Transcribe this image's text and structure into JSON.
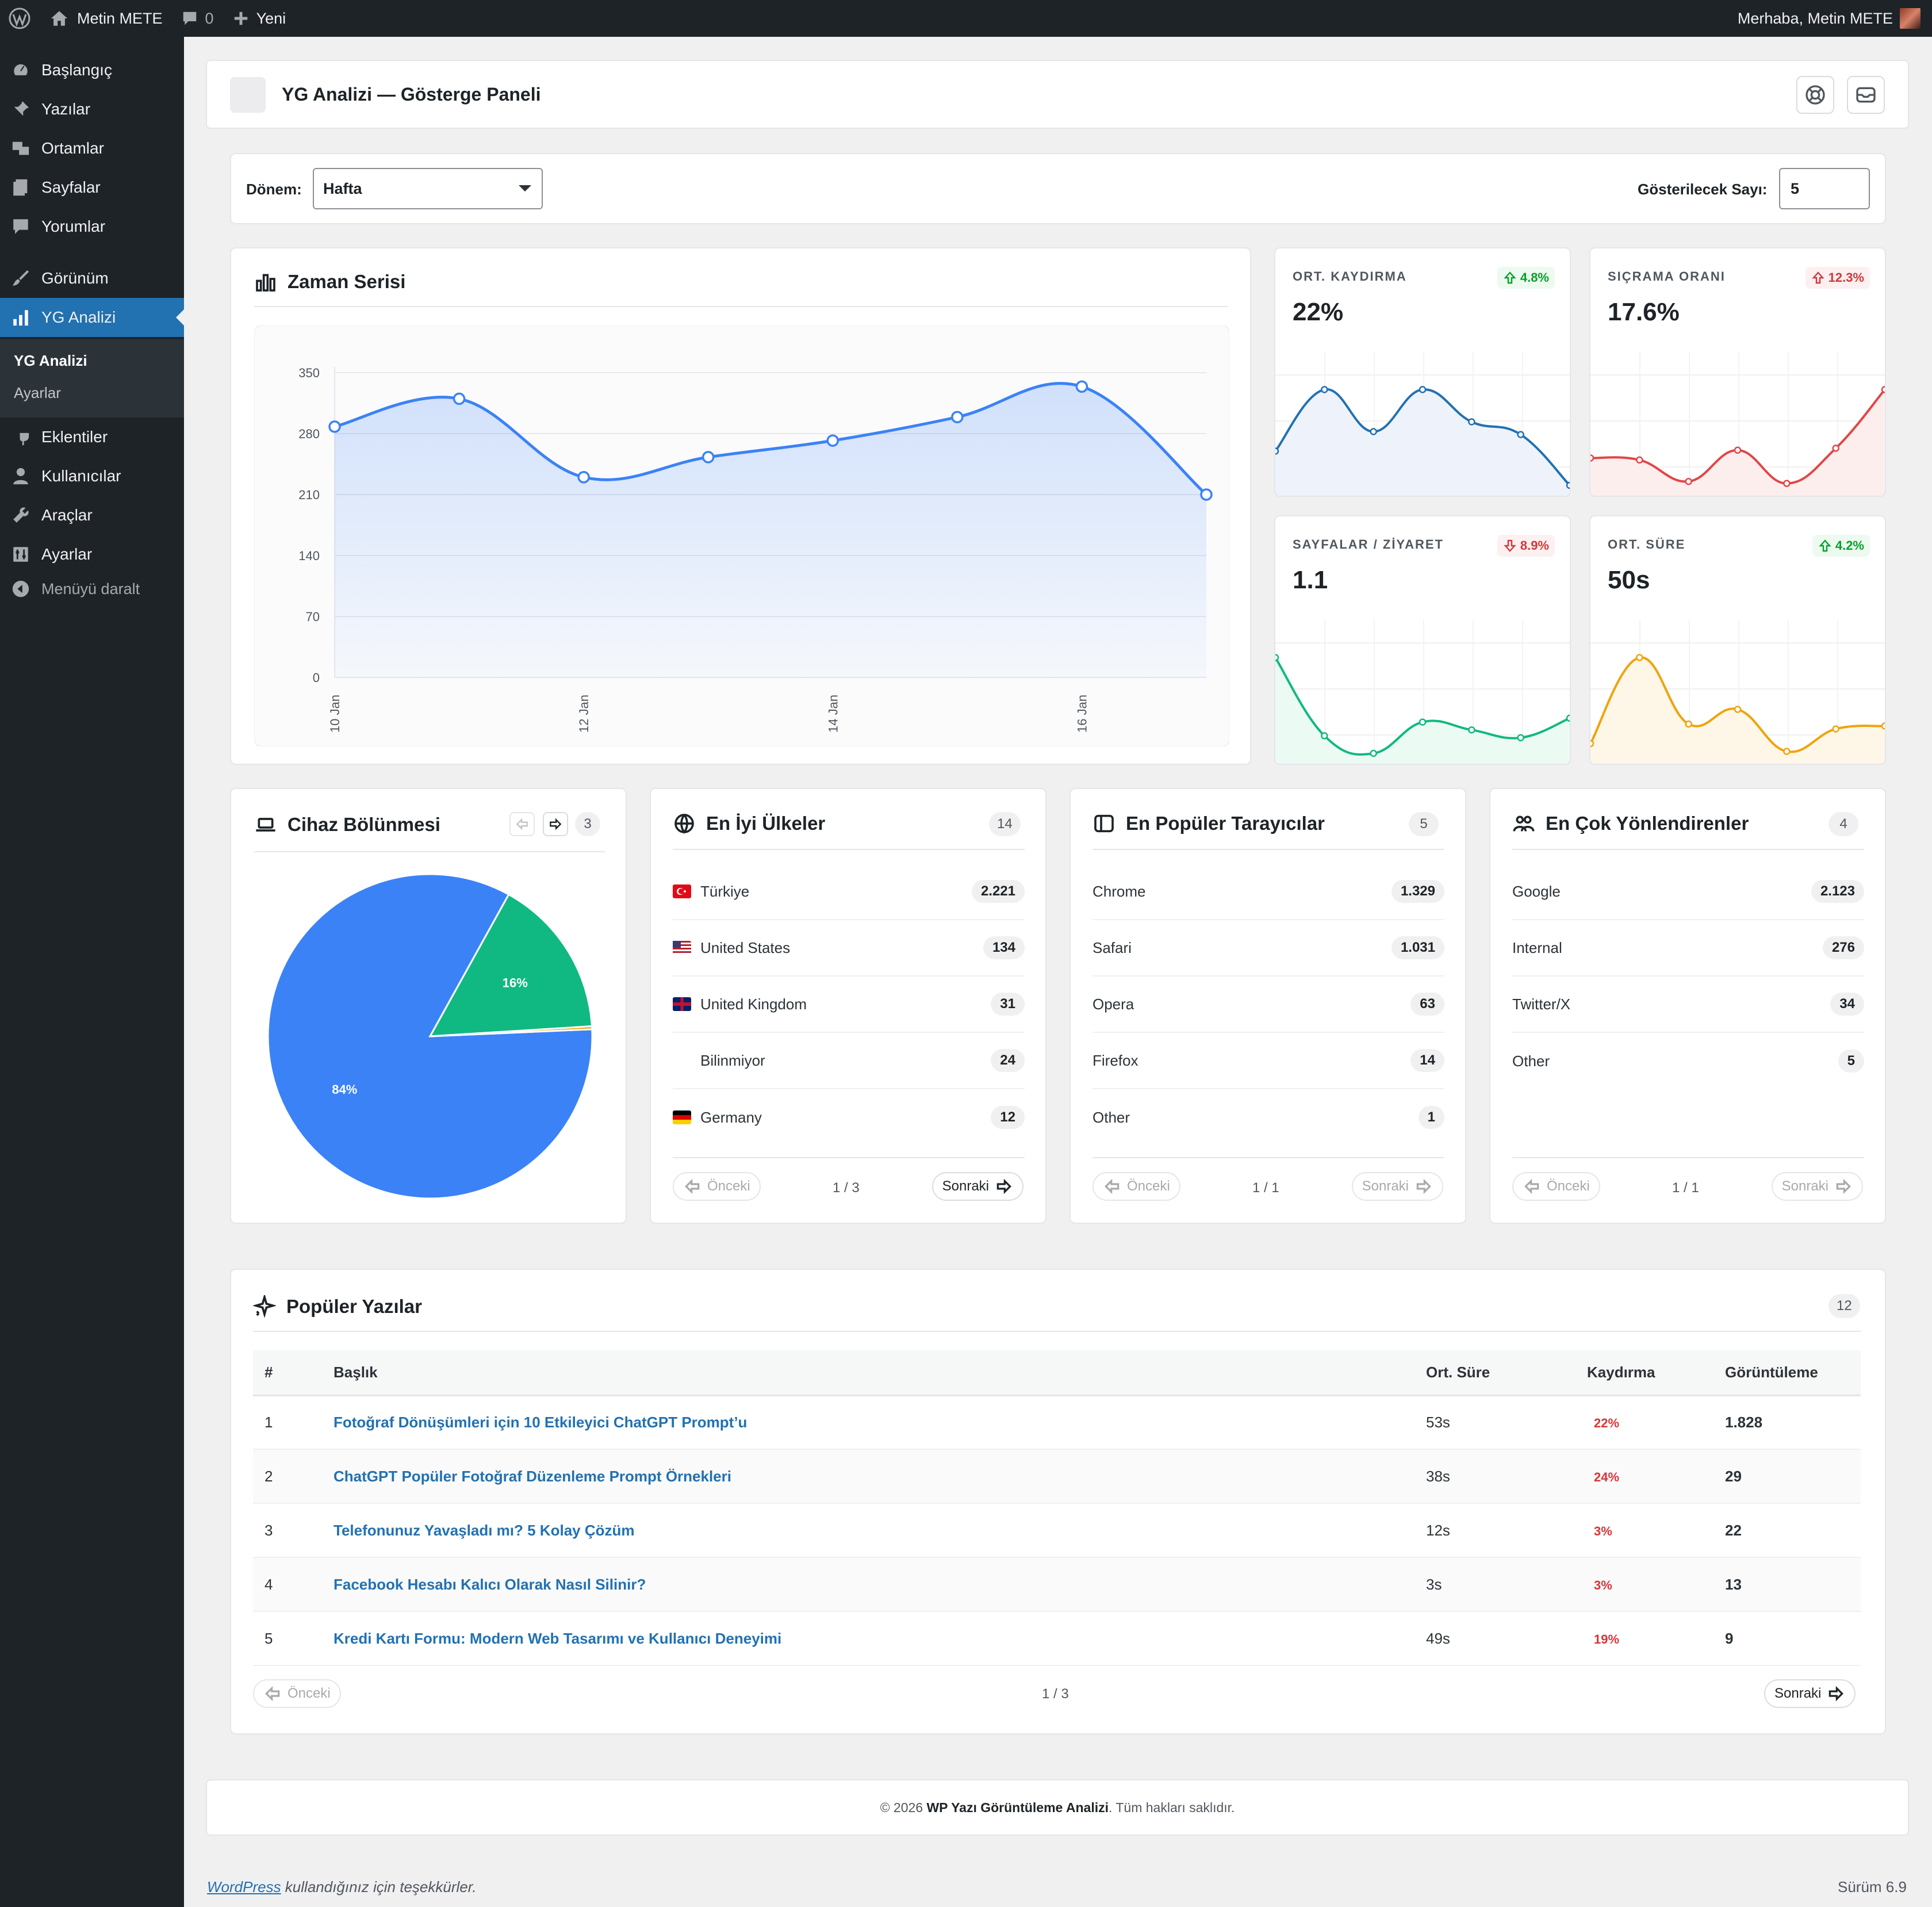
{
  "adminbar": {
    "site_name": "Metin METE",
    "comments_count": "0",
    "new_label": "Yeni",
    "greeting": "Merhaba, Metin METE"
  },
  "sidebar": {
    "items": [
      {
        "label": "Başlangıç",
        "icon": "dashboard-icon"
      },
      {
        "label": "Yazılar",
        "icon": "pin-icon"
      },
      {
        "label": "Ortamlar",
        "icon": "media-icon"
      },
      {
        "label": "Sayfalar",
        "icon": "pages-icon"
      },
      {
        "label": "Yorumlar",
        "icon": "comments-icon"
      },
      {
        "label": "Görünüm",
        "icon": "appearance-icon"
      },
      {
        "label": "YG Analizi",
        "icon": "chart-icon"
      },
      {
        "label": "Eklentiler",
        "icon": "plugins-icon"
      },
      {
        "label": "Kullanıcılar",
        "icon": "users-icon"
      },
      {
        "label": "Araçlar",
        "icon": "tools-icon"
      },
      {
        "label": "Ayarlar",
        "icon": "settings-icon"
      },
      {
        "label": "Menüyü daralt",
        "icon": "collapse-icon"
      }
    ],
    "submenu": {
      "current": "YG Analizi",
      "other": "Ayarlar"
    }
  },
  "header": {
    "title": "YG Analizi — Gösterge Paneli"
  },
  "filters": {
    "period_label": "Dönem:",
    "period_value": "Hafta",
    "count_label": "Gösterilecek Sayı:",
    "count_value": "5"
  },
  "timeseries": {
    "title": "Zaman Serisi",
    "chart_data": {
      "type": "area",
      "x": [
        "10 Jan",
        "11 Jan",
        "12 Jan",
        "13 Jan",
        "14 Jan",
        "15 Jan",
        "16 Jan",
        "17 Jan"
      ],
      "tick_labels": [
        "10 Jan",
        "12 Jan",
        "14 Jan",
        "16 Jan"
      ],
      "values": [
        288,
        320,
        230,
        253,
        272,
        299,
        334,
        210
      ],
      "yticks": [
        0,
        70,
        140,
        210,
        280,
        350
      ],
      "ylim": [
        0,
        350
      ],
      "color": "#3b82f6"
    }
  },
  "kpis": [
    {
      "label": "ORT. KAYDIRMA",
      "value": "22%",
      "delta": "4.8%",
      "direction": "up",
      "color": "#2271b1",
      "fill": "#eef3fb",
      "spark": [
        0.35,
        0.98,
        0.55,
        0.98,
        0.65,
        0.52,
        0.0
      ]
    },
    {
      "label": "SIÇRAMA ORANI",
      "value": "17.6%",
      "delta": "12.3%",
      "direction": "up-bad",
      "color": "#e34545",
      "fill": "#fdeeee",
      "spark": [
        0.28,
        0.26,
        0.04,
        0.36,
        0.02,
        0.38,
        0.98
      ]
    },
    {
      "label": "SAYFALAR / ZİYARET",
      "value": "1.1",
      "delta": "8.9%",
      "direction": "down",
      "color": "#10b981",
      "fill": "#ecfaf4",
      "spark": [
        0.98,
        0.18,
        0.0,
        0.32,
        0.24,
        0.16,
        0.36
      ]
    },
    {
      "label": "ORT. SÜRE",
      "value": "50s",
      "delta": "4.2%",
      "direction": "up",
      "color": "#f0a30a",
      "fill": "#fef7e8",
      "spark": [
        0.1,
        0.98,
        0.3,
        0.45,
        0.02,
        0.25,
        0.28
      ]
    }
  ],
  "device": {
    "title": "Cihaz Bölünmesi",
    "count": "3",
    "chart_data": {
      "type": "pie",
      "slices": [
        {
          "label": "84%",
          "value": 84,
          "color": "#3b82f6"
        },
        {
          "label": "16%",
          "value": 16,
          "color": "#10b981"
        },
        {
          "label": "",
          "value": 0.3,
          "color": "#f0a30a"
        }
      ]
    }
  },
  "countries": {
    "title": "En İyi Ülkeler",
    "count": "14",
    "rows": [
      {
        "name": "Türkiye",
        "value": "2.221",
        "flag": "tr"
      },
      {
        "name": "United States",
        "value": "134",
        "flag": "us"
      },
      {
        "name": "United Kingdom",
        "value": "31",
        "flag": "gb"
      },
      {
        "name": "Bilinmiyor",
        "value": "24",
        "flag": ""
      },
      {
        "name": "Germany",
        "value": "12",
        "flag": "de"
      }
    ],
    "prev": "Önceki",
    "page": "1 / 3",
    "next": "Sonraki"
  },
  "browsers": {
    "title": "En Popüler Tarayıcılar",
    "count": "5",
    "rows": [
      {
        "name": "Chrome",
        "value": "1.329"
      },
      {
        "name": "Safari",
        "value": "1.031"
      },
      {
        "name": "Opera",
        "value": "63"
      },
      {
        "name": "Firefox",
        "value": "14"
      },
      {
        "name": "Other",
        "value": "1"
      }
    ],
    "prev": "Önceki",
    "page": "1 / 1",
    "next": "Sonraki"
  },
  "referrers": {
    "title": "En Çok Yönlendirenler",
    "count": "4",
    "rows": [
      {
        "name": "Google",
        "value": "2.123"
      },
      {
        "name": "Internal",
        "value": "276"
      },
      {
        "name": "Twitter/X",
        "value": "34"
      },
      {
        "name": "Other",
        "value": "5"
      }
    ],
    "prev": "Önceki",
    "page": "1 / 1",
    "next": "Sonraki"
  },
  "posts": {
    "title": "Popüler Yazılar",
    "count": "12",
    "columns": [
      "#",
      "Başlık",
      "Ort. Süre",
      "Kaydırma",
      "Görüntüleme"
    ],
    "rows": [
      {
        "n": "1",
        "title": "Fotoğraf Dönüşümleri için 10 Etkileyici ChatGPT Prompt’u",
        "time": "53s",
        "scroll": "22%",
        "views": "1.828"
      },
      {
        "n": "2",
        "title": "ChatGPT Popüler Fotoğraf Düzenleme Prompt Örnekleri",
        "time": "38s",
        "scroll": "24%",
        "views": "29"
      },
      {
        "n": "3",
        "title": "Telefonunuz Yavaşladı mı? 5 Kolay Çözüm",
        "time": "12s",
        "scroll": "3%",
        "views": "22"
      },
      {
        "n": "4",
        "title": "Facebook Hesabı Kalıcı Olarak Nasıl Silinir?",
        "time": "3s",
        "scroll": "3%",
        "views": "13"
      },
      {
        "n": "5",
        "title": "Kredi Kartı Formu: Modern Web Tasarımı ve Kullanıcı Deneyimi",
        "time": "49s",
        "scroll": "19%",
        "views": "9"
      }
    ],
    "prev": "Önceki",
    "page": "1 / 3",
    "next": "Sonraki"
  },
  "footer": {
    "copyright_prefix": "© 2026",
    "brand": "WP Yazı Görüntüleme Analizi",
    "copyright_suffix": ". Tüm hakları saklıdır.",
    "wp_link": "WordPress",
    "thanks": " kullandığınız için teşekkürler.",
    "version": "Sürüm 6.9"
  }
}
